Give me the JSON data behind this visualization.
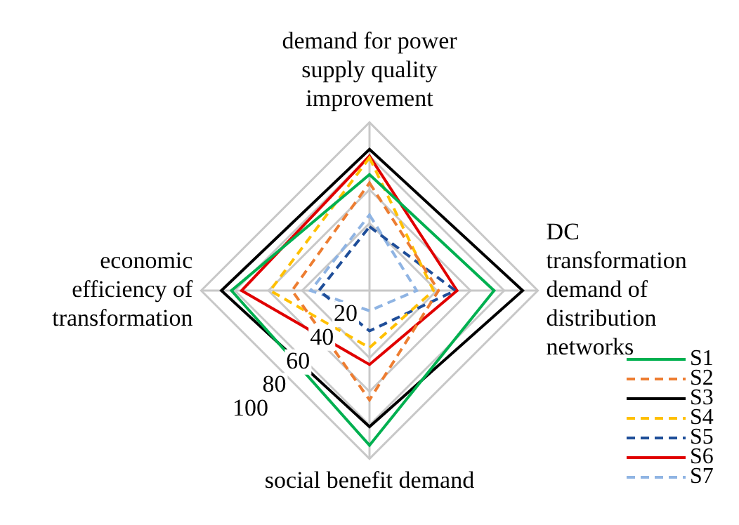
{
  "chart_data": {
    "type": "radar",
    "categories": [
      "demand for power supply quality improvement",
      "DC transformation demand of distribution networks",
      "social benefit demand",
      "economic efficiency of transformation"
    ],
    "series": [
      {
        "name": "S1",
        "color": "#00b050",
        "line_style": "solid",
        "values": [
          69,
          74,
          92,
          82
        ]
      },
      {
        "name": "S2",
        "color": "#ed7d31",
        "line_style": "dashed",
        "values": [
          64,
          41,
          65,
          46
        ]
      },
      {
        "name": "S3",
        "color": "#000000",
        "line_style": "solid",
        "values": [
          84,
          91,
          81,
          88
        ]
      },
      {
        "name": "S4",
        "color": "#ffc000",
        "line_style": "dashed",
        "values": [
          79,
          38,
          34,
          59
        ]
      },
      {
        "name": "S5",
        "color": "#1f4e99",
        "line_style": "dashed",
        "values": [
          38,
          51,
          24,
          30
        ]
      },
      {
        "name": "S6",
        "color": "#e00000",
        "line_style": "solid",
        "values": [
          80,
          52,
          44,
          76
        ]
      },
      {
        "name": "S7",
        "color": "#8fb4e3",
        "line_style": "dashed",
        "values": [
          45,
          28,
          12,
          35
        ]
      }
    ],
    "ylim": [
      0,
      100
    ],
    "yticks": [
      20,
      40,
      60,
      80,
      100
    ],
    "grid": true,
    "legend": "bottom right",
    "marker": "none"
  }
}
